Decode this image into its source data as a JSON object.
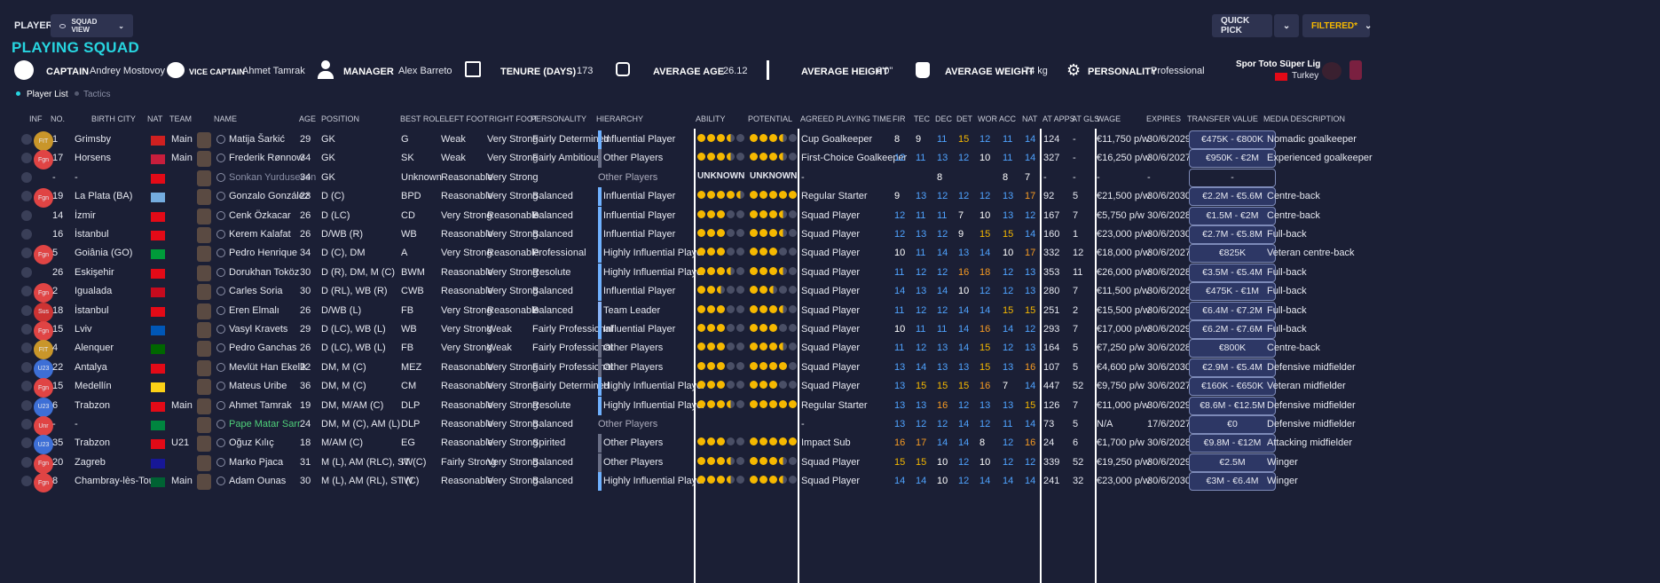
{
  "top": {
    "players_label": "PLAYERS",
    "view_dropdown": "SQUAD VIEW",
    "quick_pick": "QUICK PICK",
    "filtered": "FILTERED*"
  },
  "title": "PLAYING SQUAD",
  "info": {
    "captain_label": "CAPTAIN",
    "captain": "Andrey Mostovoy",
    "vice_label": "VICE CAPTAIN",
    "vice": "Ahmet Tamrak",
    "manager_label": "MANAGER",
    "manager": "Alex Barreto",
    "tenure_label": "TENURE (DAYS)",
    "tenure": "173",
    "age_label": "AVERAGE AGE",
    "age": "26.12",
    "height_label": "AVERAGE HEIGHT",
    "height": "6'0\"",
    "weight_label": "AVERAGE WEIGHT",
    "weight": "74 kg",
    "personality_label": "PERSONALITY",
    "personality": "Professional",
    "league": "Spor Toto Süper Lig",
    "country": "Turkey"
  },
  "tabs": {
    "list": "Player List",
    "tactics": "Tactics"
  },
  "headers": {
    "inf": "INF",
    "no": "NO.",
    "city": "BIRTH CITY",
    "nat": "NAT",
    "team": "TEAM",
    "name": "NAME",
    "age": "AGE",
    "pos": "POSITION",
    "role": "BEST ROLE",
    "lf": "LEFT FOOT",
    "rf": "RIGHT FOOT",
    "pers": "PERSONALITY",
    "hier": "HIERARCHY",
    "abil": "ABILITY",
    "pot": "POTENTIAL",
    "apt": "AGREED PLAYING TIME",
    "fir": "FIR",
    "tec": "TEC",
    "dec": "DEC",
    "det": "DET",
    "wor": "WOR",
    "acc": "ACC",
    "nat2": "NAT",
    "apps": "AT APPS",
    "gls": "AT GLS",
    "wage": "WAGE",
    "exp": "EXPIRES",
    "tv": "TRANSFER VALUE",
    "media": "MEDIA DESCRIPTION"
  },
  "players": [
    {
      "inf": "FIT",
      "no": "1",
      "city": "Grimsby",
      "team": "Main",
      "name": "Matija Šarkić",
      "age": "29",
      "pos": "GK",
      "role": "G",
      "lf": "Weak",
      "rf": "Very Strong",
      "pers": "Fairly Determined",
      "hier": "Influential Player",
      "ab": "3h",
      "pt": "3h",
      "apt": "Cup Goalkeeper",
      "fir": "8",
      "tec": "9",
      "dec": "11",
      "det": "15",
      "wor": "12",
      "acc": "11",
      "nat": "14",
      "apps": "124",
      "gls": "-",
      "wage": "€11,750 p/w",
      "exp": "30/6/2029",
      "tv": "€475K - €800K",
      "media": "Nomadic goalkeeper"
    },
    {
      "inf": "Fgn",
      "no": "17",
      "city": "Horsens",
      "team": "Main",
      "name": "Frederik Rønnow",
      "age": "34",
      "pos": "GK",
      "role": "SK",
      "lf": "Weak",
      "rf": "Very Strong",
      "pers": "Fairly Ambitious",
      "hier": "Other Players",
      "ab": "3h",
      "pt": "3h",
      "apt": "First-Choice Goalkeeper",
      "fir": "12",
      "tec": "11",
      "dec": "13",
      "det": "12",
      "wor": "10",
      "acc": "11",
      "nat": "14",
      "apps": "327",
      "gls": "-",
      "wage": "€16,250 p/w",
      "exp": "30/6/2027",
      "tv": "€950K - €2M",
      "media": "Experienced goalkeeper"
    },
    {
      "inf": "",
      "no": "-",
      "city": "-",
      "team": "",
      "name": "Sonkan Yurduseven",
      "age": "34",
      "pos": "GK",
      "role": "Unknown",
      "lf": "Reasonable",
      "rf": "Very Strong",
      "pers": "",
      "hier": "Other Players",
      "ab": "UNKNOWN",
      "pt": "UNKNOWN",
      "apt": "-",
      "fir": "",
      "tec": "",
      "dec": "8",
      "det": "",
      "wor": "",
      "acc": "8",
      "nat": "7",
      "apps": "-",
      "gls": "-",
      "wage": "-",
      "exp": "-",
      "tv": "-",
      "media": ""
    },
    {
      "inf": "Fgn",
      "no": "19",
      "city": "La Plata (BA)",
      "team": "",
      "name": "Gonzalo González",
      "age": "23",
      "pos": "D (C)",
      "role": "BPD",
      "lf": "Reasonable",
      "rf": "Very Strong",
      "pers": "Balanced",
      "hier": "Influential Player",
      "ab": "4h",
      "pt": "5",
      "apt": "Regular Starter",
      "fir": "9",
      "tec": "13",
      "dec": "12",
      "det": "12",
      "wor": "12",
      "acc": "13",
      "nat": "17",
      "apps": "92",
      "gls": "5",
      "wage": "€21,500 p/w",
      "exp": "30/6/2030",
      "tv": "€2.2M - €5.6M",
      "media": "Centre-back"
    },
    {
      "inf": "",
      "no": "14",
      "city": "İzmir",
      "team": "",
      "name": "Cenk Özkacar",
      "age": "26",
      "pos": "D (LC)",
      "role": "CD",
      "lf": "Very Strong",
      "rf": "Reasonable",
      "pers": "Balanced",
      "hier": "Influential Player",
      "ab": "3",
      "pt": "3h",
      "apt": "Squad Player",
      "fir": "12",
      "tec": "11",
      "dec": "11",
      "det": "7",
      "wor": "10",
      "acc": "13",
      "nat": "12",
      "apps": "167",
      "gls": "7",
      "wage": "€5,750 p/w",
      "exp": "30/6/2028",
      "tv": "€1.5M - €2M",
      "media": "Centre-back"
    },
    {
      "inf": "",
      "no": "16",
      "city": "İstanbul",
      "team": "",
      "name": "Kerem Kalafat",
      "age": "26",
      "pos": "D/WB (R)",
      "role": "WB",
      "lf": "Reasonable",
      "rf": "Very Strong",
      "pers": "Balanced",
      "hier": "Influential Player",
      "ab": "3",
      "pt": "3h",
      "apt": "Squad Player",
      "fir": "12",
      "tec": "13",
      "dec": "12",
      "det": "9",
      "wor": "15",
      "acc": "15",
      "nat": "14",
      "apps": "160",
      "gls": "1",
      "wage": "€23,000 p/w",
      "exp": "30/6/2030",
      "tv": "€2.7M - €5.8M",
      "media": "Full-back"
    },
    {
      "inf": "Fgn",
      "no": "5",
      "city": "Goiânia (GO)",
      "team": "",
      "name": "Pedro Henrique",
      "age": "34",
      "pos": "D (C), DM",
      "role": "A",
      "lf": "Very Strong",
      "rf": "Reasonable",
      "pers": "Professional",
      "hier": "Highly Influential Player",
      "ab": "3",
      "pt": "3",
      "apt": "Squad Player",
      "fir": "10",
      "tec": "11",
      "dec": "14",
      "det": "13",
      "wor": "14",
      "acc": "10",
      "nat": "17",
      "apps": "332",
      "gls": "12",
      "wage": "€18,000 p/w",
      "exp": "30/6/2027",
      "tv": "€825K",
      "media": "Veteran centre-back"
    },
    {
      "inf": "",
      "no": "26",
      "city": "Eskişehir",
      "team": "",
      "name": "Dorukhan Toköz",
      "age": "30",
      "pos": "D (R), DM, M (C)",
      "role": "BWM",
      "lf": "Reasonable",
      "rf": "Very Strong",
      "pers": "Resolute",
      "hier": "Highly Influential Player",
      "ab": "3h",
      "pt": "3h",
      "apt": "Squad Player",
      "fir": "11",
      "tec": "12",
      "dec": "12",
      "det": "16",
      "wor": "18",
      "acc": "12",
      "nat": "13",
      "apps": "353",
      "gls": "11",
      "wage": "€26,000 p/w",
      "exp": "30/6/2028",
      "tv": "€3.5M - €5.4M",
      "media": "Full-back"
    },
    {
      "inf": "Fgn",
      "no": "2",
      "city": "Igualada",
      "team": "",
      "name": "Carles Soria",
      "age": "30",
      "pos": "D (RL), WB (R)",
      "role": "CWB",
      "lf": "Reasonable",
      "rf": "Very Strong",
      "pers": "Balanced",
      "hier": "Influential Player",
      "ab": "2h",
      "pt": "2h",
      "apt": "Squad Player",
      "fir": "14",
      "tec": "13",
      "dec": "14",
      "det": "10",
      "wor": "12",
      "acc": "12",
      "nat": "13",
      "apps": "280",
      "gls": "7",
      "wage": "€11,500 p/w",
      "exp": "30/6/2028",
      "tv": "€475K - €1M",
      "media": "Full-back"
    },
    {
      "inf": "Sus",
      "no": "18",
      "city": "İstanbul",
      "team": "",
      "name": "Eren Elmalı",
      "age": "26",
      "pos": "D/WB (L)",
      "role": "FB",
      "lf": "Very Strong",
      "rf": "Reasonable",
      "pers": "Balanced",
      "hier": "Team Leader",
      "ab": "3",
      "pt": "3h",
      "apt": "Squad Player",
      "fir": "11",
      "tec": "12",
      "dec": "12",
      "det": "14",
      "wor": "14",
      "acc": "15",
      "nat": "15",
      "apps": "251",
      "gls": "2",
      "wage": "€15,500 p/w",
      "exp": "30/6/2029",
      "tv": "€6.4M - €7.2M",
      "media": "Full-back"
    },
    {
      "inf": "Fgn",
      "no": "15",
      "city": "Lviv",
      "team": "",
      "name": "Vasyl Kravets",
      "age": "29",
      "pos": "D (LC), WB (L)",
      "role": "WB",
      "lf": "Very Strong",
      "rf": "Weak",
      "pers": "Fairly Professional",
      "hier": "Influential Player",
      "ab": "3",
      "pt": "3",
      "apt": "Squad Player",
      "fir": "10",
      "tec": "11",
      "dec": "11",
      "det": "14",
      "wor": "16",
      "acc": "14",
      "nat": "12",
      "apps": "293",
      "gls": "7",
      "wage": "€17,000 p/w",
      "exp": "30/6/2029",
      "tv": "€6.2M - €7.6M",
      "media": "Full-back"
    },
    {
      "inf": "FIT",
      "no": "4",
      "city": "Alenquer",
      "team": "",
      "name": "Pedro Ganchas",
      "age": "26",
      "pos": "D (LC), WB (L)",
      "role": "FB",
      "lf": "Very Strong",
      "rf": "Weak",
      "pers": "Fairly Professional",
      "hier": "Other Players",
      "ab": "3",
      "pt": "3h",
      "apt": "Squad Player",
      "fir": "11",
      "tec": "12",
      "dec": "13",
      "det": "14",
      "wor": "15",
      "acc": "12",
      "nat": "13",
      "apps": "164",
      "gls": "5",
      "wage": "€7,250 p/w",
      "exp": "30/6/2028",
      "tv": "€800K",
      "media": "Centre-back"
    },
    {
      "inf": "U23",
      "no": "22",
      "city": "Antalya",
      "team": "",
      "name": "Mevlüt Han Ekelik",
      "age": "22",
      "pos": "DM, M (C)",
      "role": "MEZ",
      "lf": "Reasonable",
      "rf": "Very Strong",
      "pers": "Fairly Professional",
      "hier": "Other Players",
      "ab": "3",
      "pt": "4",
      "apt": "Squad Player",
      "fir": "13",
      "tec": "14",
      "dec": "13",
      "det": "13",
      "wor": "15",
      "acc": "13",
      "nat": "16",
      "apps": "107",
      "gls": "5",
      "wage": "€4,600 p/w",
      "exp": "30/6/2030",
      "tv": "€2.9M - €5.4M",
      "media": "Defensive midfielder"
    },
    {
      "inf": "Fgn",
      "no": "15",
      "city": "Medellín",
      "team": "",
      "name": "Mateus Uribe",
      "age": "36",
      "pos": "DM, M (C)",
      "role": "CM",
      "lf": "Reasonable",
      "rf": "Very Strong",
      "pers": "Fairly Determined",
      "hier": "Highly Influential Player",
      "ab": "3",
      "pt": "3",
      "apt": "Squad Player",
      "fir": "13",
      "tec": "15",
      "dec": "15",
      "det": "15",
      "wor": "16",
      "acc": "7",
      "nat": "14",
      "apps": "447",
      "gls": "52",
      "wage": "€9,750 p/w",
      "exp": "30/6/2027",
      "tv": "€160K - €650K",
      "media": "Veteran midfielder"
    },
    {
      "inf": "U23",
      "no": "6",
      "city": "Trabzon",
      "team": "Main",
      "name": "Ahmet Tamrak",
      "age": "19",
      "pos": "DM, M/AM (C)",
      "role": "DLP",
      "lf": "Reasonable",
      "rf": "Very Strong",
      "pers": "Resolute",
      "hier": "Highly Influential Player",
      "ab": "3h",
      "pt": "5w",
      "apt": "Regular Starter",
      "fir": "13",
      "tec": "13",
      "dec": "16",
      "det": "12",
      "wor": "13",
      "acc": "13",
      "nat": "15",
      "apps": "126",
      "gls": "7",
      "wage": "€11,000 p/w",
      "exp": "30/6/2029",
      "tv": "€8.6M - €12.5M",
      "media": "Defensive midfielder"
    },
    {
      "inf": "Unr",
      "no": "-",
      "city": "-",
      "team": "",
      "name": "Pape Matar Sarr",
      "age": "24",
      "pos": "DM, M (C), AM (L)",
      "role": "DLP",
      "lf": "Reasonable",
      "rf": "Very Strong",
      "pers": "Balanced",
      "hier": "Other Players",
      "ab": "",
      "pt": "",
      "apt": "-",
      "fir": "13",
      "tec": "12",
      "dec": "12",
      "det": "14",
      "wor": "12",
      "acc": "11",
      "nat": "14",
      "apps": "73",
      "gls": "5",
      "wage": "N/A",
      "exp": "17/6/2027",
      "tv": "€0",
      "media": "Defensive midfielder"
    },
    {
      "inf": "U23",
      "no": "35",
      "city": "Trabzon",
      "team": "U21",
      "name": "Oğuz Kılıç",
      "age": "18",
      "pos": "M/AM (C)",
      "role": "EG",
      "lf": "Reasonable",
      "rf": "Very Strong",
      "pers": "Spirited",
      "hier": "Other Players",
      "ab": "3",
      "pt": "5w",
      "apt": "Impact Sub",
      "fir": "16",
      "tec": "17",
      "dec": "14",
      "det": "14",
      "wor": "8",
      "acc": "12",
      "nat": "16",
      "apps": "24",
      "gls": "6",
      "wage": "€1,700 p/w",
      "exp": "30/6/2028",
      "tv": "€9.8M - €12M",
      "media": "Attacking midfielder"
    },
    {
      "inf": "Fgn",
      "no": "20",
      "city": "Zagreb",
      "team": "",
      "name": "Marko Pjaca",
      "age": "31",
      "pos": "M (L), AM (RLC), ST (C)",
      "role": "IW",
      "lf": "Fairly Strong",
      "rf": "Very Strong",
      "pers": "Balanced",
      "hier": "Other Players",
      "ab": "3h",
      "pt": "3h",
      "apt": "Squad Player",
      "fir": "15",
      "tec": "15",
      "dec": "10",
      "det": "12",
      "wor": "10",
      "acc": "12",
      "nat": "12",
      "apps": "339",
      "gls": "52",
      "wage": "€19,250 p/w",
      "exp": "30/6/2029",
      "tv": "€2.5M",
      "media": "Winger"
    },
    {
      "inf": "Fgn",
      "no": "8",
      "city": "Chambray-lès-Tours",
      "team": "Main",
      "name": "Adam Ounas",
      "age": "30",
      "pos": "M (L), AM (RL), ST (C)",
      "role": "IW",
      "lf": "Reasonable",
      "rf": "Very Strong",
      "pers": "Balanced",
      "hier": "Highly Influential Player",
      "ab": "3h",
      "pt": "3h",
      "apt": "Squad Player",
      "fir": "14",
      "tec": "14",
      "dec": "10",
      "det": "12",
      "wor": "14",
      "acc": "14",
      "nat": "14",
      "apps": "241",
      "gls": "32",
      "wage": "€23,000 p/w",
      "exp": "30/6/2030",
      "tv": "€3M - €6.4M",
      "media": "Winger"
    }
  ]
}
